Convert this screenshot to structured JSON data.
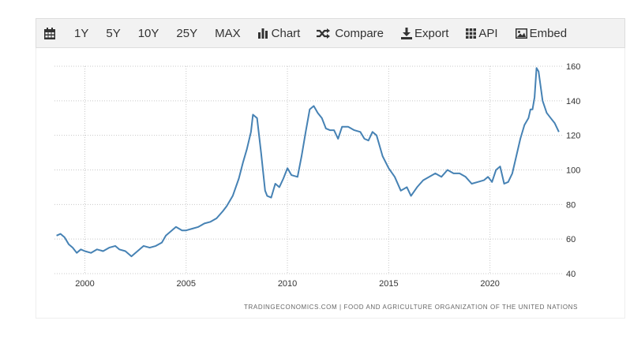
{
  "toolbar": {
    "calendar_icon": "calendar-icon",
    "ranges": [
      "1Y",
      "5Y",
      "10Y",
      "25Y",
      "MAX"
    ],
    "chart_label": "Chart",
    "compare_label": "Compare",
    "export_label": "Export",
    "api_label": "API",
    "embed_label": "Embed"
  },
  "colors": {
    "line": "#4682b4",
    "grid": "#c8c8c8",
    "toolbar_bg": "#f2f2f2"
  },
  "source_text": "TRADINGECONOMICS.COM  |  FOOD AND AGRICULTURE ORGANIZATION OF THE UNITED NATIONS",
  "chart_data": {
    "type": "line",
    "title": "",
    "xlabel": "",
    "ylabel": "",
    "xlim": [
      1998.5,
      2023.6
    ],
    "ylim": [
      40,
      160
    ],
    "y_ticks": [
      40,
      60,
      80,
      100,
      120,
      140,
      160
    ],
    "x_ticks": [
      2000,
      2005,
      2010,
      2015,
      2020
    ],
    "grid": true,
    "series": [
      {
        "x": [
          1998.6,
          1998.8,
          1999.0,
          1999.2,
          1999.4,
          1999.6,
          1999.8,
          2000.0,
          2000.3,
          2000.6,
          2000.9,
          2001.2,
          2001.5,
          2001.7,
          2002.0,
          2002.3,
          2002.6,
          2002.9,
          2003.2,
          2003.5,
          2003.8,
          2004.0,
          2004.2,
          2004.5,
          2004.8,
          2005.0,
          2005.3,
          2005.6,
          2005.9,
          2006.2,
          2006.5,
          2006.8,
          2007.0,
          2007.3,
          2007.6,
          2007.8,
          2008.0,
          2008.2,
          2008.3,
          2008.5,
          2008.7,
          2008.9,
          2009.0,
          2009.2,
          2009.4,
          2009.6,
          2009.8,
          2010.0,
          2010.2,
          2010.5,
          2010.7,
          2010.9,
          2011.1,
          2011.3,
          2011.5,
          2011.7,
          2011.9,
          2012.1,
          2012.3,
          2012.5,
          2012.7,
          2013.0,
          2013.3,
          2013.6,
          2013.8,
          2014.0,
          2014.2,
          2014.4,
          2014.7,
          2015.0,
          2015.3,
          2015.6,
          2015.9,
          2016.1,
          2016.4,
          2016.7,
          2017.0,
          2017.3,
          2017.6,
          2017.9,
          2018.2,
          2018.5,
          2018.8,
          2019.1,
          2019.4,
          2019.7,
          2019.9,
          2020.1,
          2020.3,
          2020.5,
          2020.7,
          2020.9,
          2021.1,
          2021.3,
          2021.5,
          2021.7,
          2021.9,
          2022.0,
          2022.1,
          2022.2,
          2022.3,
          2022.4,
          2022.6,
          2022.8,
          2023.0,
          2023.2,
          2023.4
        ],
        "values": [
          62,
          63,
          61,
          57,
          55,
          52,
          54,
          53,
          52,
          54,
          53,
          55,
          56,
          54,
          53,
          50,
          53,
          56,
          55,
          56,
          58,
          62,
          64,
          67,
          65,
          65,
          66,
          67,
          69,
          70,
          72,
          76,
          79,
          85,
          95,
          104,
          112,
          122,
          132,
          130,
          110,
          88,
          85,
          84,
          92,
          90,
          95,
          101,
          97,
          96,
          108,
          122,
          135,
          137,
          133,
          130,
          124,
          123,
          123,
          118,
          125,
          125,
          123,
          122,
          118,
          117,
          122,
          120,
          108,
          101,
          96,
          88,
          90,
          85,
          90,
          94,
          96,
          98,
          96,
          100,
          98,
          98,
          96,
          92,
          93,
          94,
          96,
          93,
          100,
          102,
          92,
          93,
          98,
          108,
          118,
          126,
          130,
          135,
          135,
          142,
          159,
          157,
          140,
          133,
          130,
          127,
          122
        ]
      }
    ]
  }
}
